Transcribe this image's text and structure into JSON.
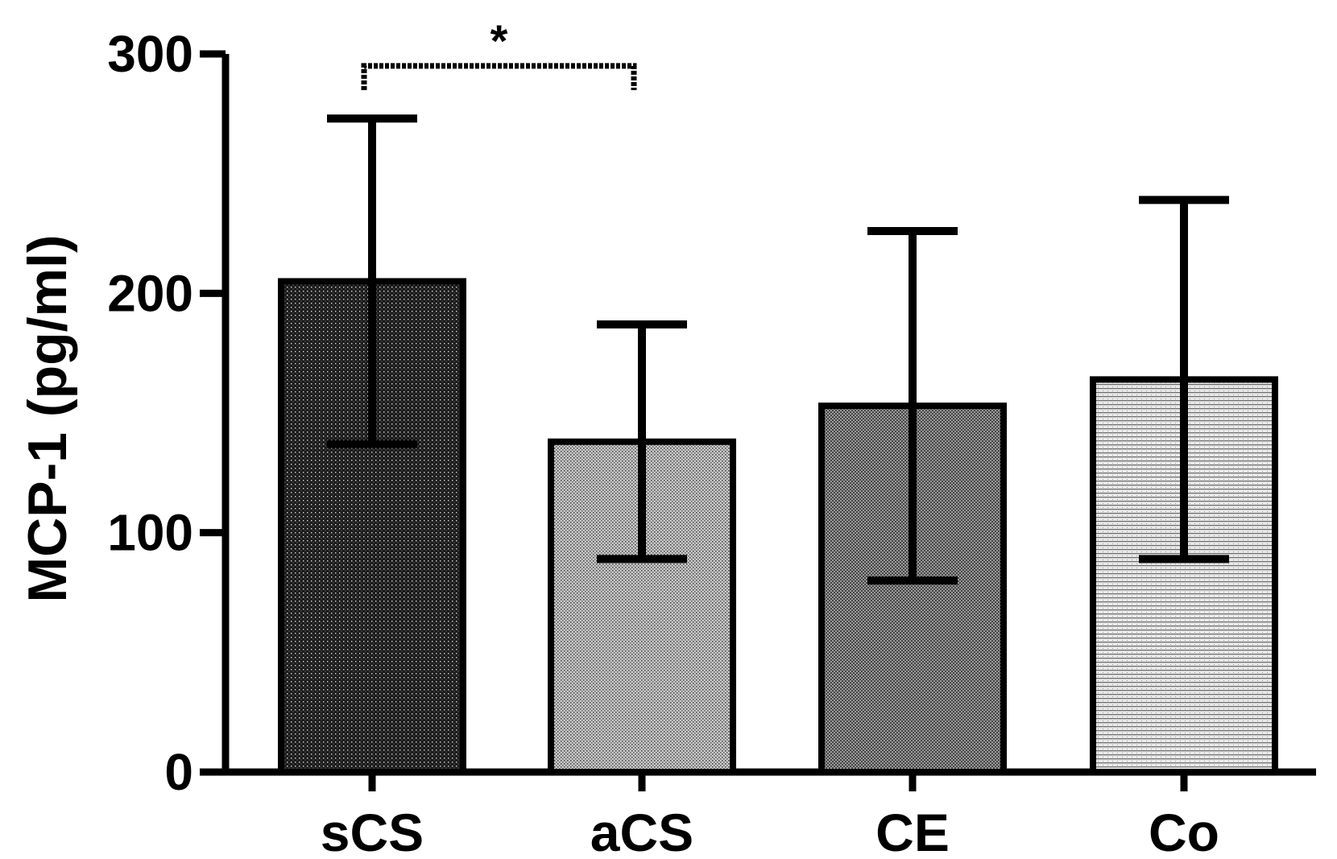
{
  "chart_data": {
    "type": "bar",
    "title": "",
    "xlabel": "",
    "ylabel": "MCP-1 (pg/ml)",
    "ylim": [
      0,
      300
    ],
    "yticks": [
      0,
      100,
      200,
      300
    ],
    "categories": [
      "sCS",
      "aCS",
      "CE",
      "Co"
    ],
    "values": [
      205,
      138,
      153,
      164
    ],
    "error": [
      68,
      49,
      73,
      75
    ],
    "patterns": [
      "dense-dark-dots",
      "fine-medium",
      "fine-crosshatch",
      "light-horizontal"
    ],
    "significance": [
      {
        "from": "sCS",
        "to": "aCS",
        "label": "*",
        "y": 297
      }
    ],
    "grid": false,
    "legend": "none"
  }
}
